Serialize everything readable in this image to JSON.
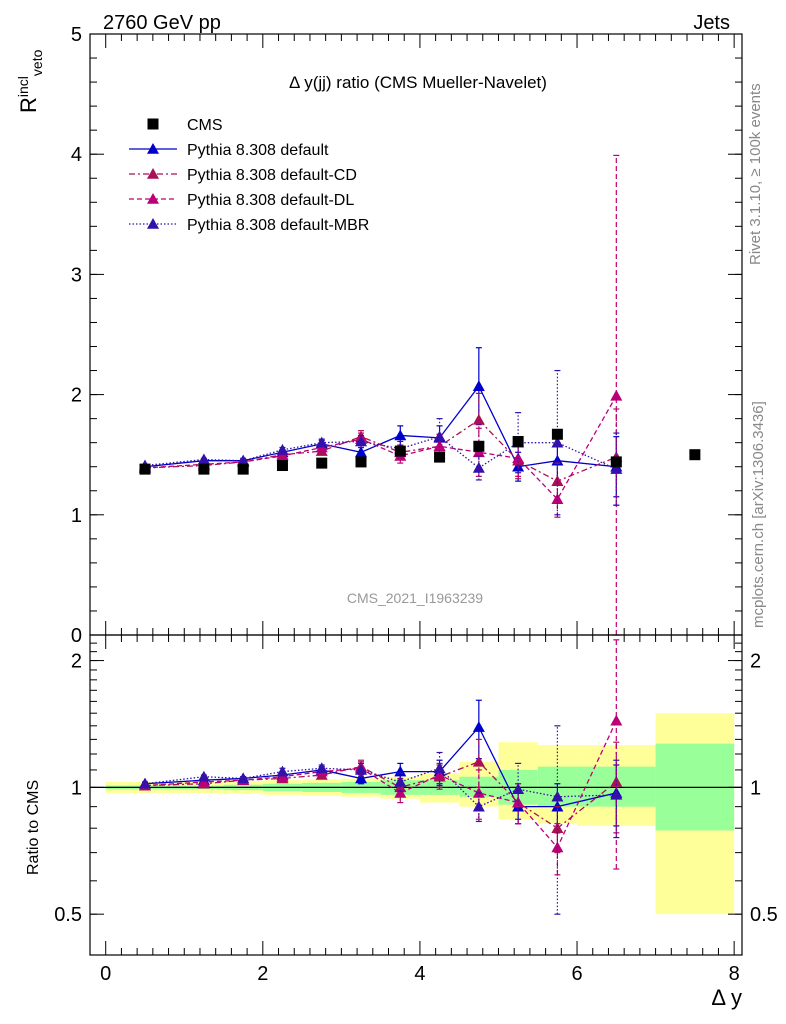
{
  "header": {
    "left": "2760 GeV pp",
    "right": "Jets"
  },
  "side_labels": {
    "rivet": "Rivet 3.1.10, ≥ 100k events",
    "mcplots": "mcplots.cern.ch [arXiv:1306.3436]"
  },
  "colors": {
    "cms": "#000000",
    "default": "#0000cc",
    "cd": "#aa1155",
    "dl": "#bb0077",
    "mbr": "#3311aa",
    "band_yellow": "#ffff99",
    "band_green": "#99ff99"
  },
  "chart_data": [
    {
      "type": "scatter",
      "title": "Δ y(jj) ratio (CMS Mueller-Navelet)",
      "ylabel_main": "R",
      "ylabel_sup": "incl",
      "ylabel_sub": "veto",
      "ylim": [
        0,
        5
      ],
      "xlim": [
        -0.2,
        8.1
      ],
      "yticks": [
        "0",
        "1",
        "2",
        "3",
        "4",
        "5"
      ],
      "watermark": "CMS_2021_I1963239",
      "legend_position": "top-left",
      "series": [
        {
          "name": "CMS",
          "marker": "square",
          "x": [
            0.5,
            1.25,
            1.75,
            2.25,
            2.75,
            3.25,
            3.75,
            4.25,
            4.75,
            5.25,
            5.75,
            6.5,
            7.5
          ],
          "y": [
            1.38,
            1.38,
            1.38,
            1.41,
            1.43,
            1.44,
            1.53,
            1.48,
            1.57,
            1.61,
            1.67,
            1.44,
            1.5
          ]
        },
        {
          "name": "Pythia 8.308 default",
          "line": "solid",
          "x": [
            0.5,
            1.25,
            1.75,
            2.25,
            2.75,
            3.25,
            3.75,
            4.25,
            4.75,
            5.25,
            5.75,
            6.5
          ],
          "y": [
            1.4,
            1.45,
            1.45,
            1.52,
            1.59,
            1.52,
            1.66,
            1.64,
            2.07,
            1.4,
            1.45,
            1.4
          ],
          "err": [
            0.01,
            0.01,
            0.01,
            0.02,
            0.03,
            0.04,
            0.08,
            0.1,
            0.32,
            0.12,
            0.2,
            0.25
          ]
        },
        {
          "name": "Pythia 8.308 default-CD",
          "line": "dashdot",
          "x": [
            0.5,
            1.25,
            1.75,
            2.25,
            2.75,
            3.25,
            3.75,
            4.25,
            4.75,
            5.25,
            5.75,
            6.5
          ],
          "y": [
            1.39,
            1.41,
            1.44,
            1.5,
            1.53,
            1.65,
            1.52,
            1.57,
            1.79,
            1.45,
            1.28,
            1.48
          ],
          "err": [
            0.01,
            0.01,
            0.02,
            0.02,
            0.03,
            0.05,
            0.06,
            0.1,
            0.22,
            0.15,
            0.15,
            0.4
          ]
        },
        {
          "name": "Pythia 8.308 default-DL",
          "line": "dashed",
          "x": [
            0.5,
            1.25,
            1.75,
            2.25,
            2.75,
            3.25,
            3.75,
            4.25,
            4.75,
            5.25,
            5.75,
            6.5
          ],
          "y": [
            1.39,
            1.42,
            1.44,
            1.49,
            1.56,
            1.63,
            1.49,
            1.57,
            1.52,
            1.47,
            1.13,
            1.99
          ],
          "err": [
            0.01,
            0.01,
            0.02,
            0.02,
            0.03,
            0.05,
            0.06,
            0.1,
            0.2,
            0.15,
            0.15,
            2.0
          ]
        },
        {
          "name": "Pythia 8.308 default-MBR",
          "line": "dotted",
          "x": [
            0.5,
            1.25,
            1.75,
            2.25,
            2.75,
            3.25,
            3.75,
            4.25,
            4.75,
            5.25,
            5.75,
            6.5
          ],
          "y": [
            1.41,
            1.46,
            1.45,
            1.54,
            1.6,
            1.61,
            1.55,
            1.65,
            1.39,
            1.6,
            1.6,
            1.38
          ],
          "err": [
            0.01,
            0.01,
            0.02,
            0.02,
            0.03,
            0.05,
            0.06,
            0.15,
            0.1,
            0.25,
            0.6,
            0.3
          ]
        }
      ]
    },
    {
      "type": "scatter",
      "ylabel": "Ratio to CMS",
      "xlabel": "Δ y",
      "ylim": [
        0.4,
        2.3
      ],
      "yscale": "log",
      "xlim": [
        -0.2,
        8.1
      ],
      "xticks": [
        "0",
        "2",
        "4",
        "6",
        "8"
      ],
      "yticks": [
        "0.5",
        "1",
        "2"
      ],
      "bands": {
        "bins": [
          [
            0,
            1.5
          ],
          [
            1.5,
            2
          ],
          [
            2,
            2.5
          ],
          [
            2.5,
            3
          ],
          [
            3,
            3.5
          ],
          [
            3.5,
            4
          ],
          [
            4,
            4.5
          ],
          [
            4.5,
            5
          ],
          [
            5,
            5.5
          ],
          [
            5.5,
            6
          ],
          [
            6,
            7
          ],
          [
            7,
            8
          ]
        ],
        "green": [
          [
            0.99,
            1.01
          ],
          [
            0.985,
            1.015
          ],
          [
            0.98,
            1.02
          ],
          [
            0.975,
            1.025
          ],
          [
            0.97,
            1.03
          ],
          [
            0.96,
            1.04
          ],
          [
            0.96,
            1.04
          ],
          [
            0.95,
            1.06
          ],
          [
            0.91,
            1.1
          ],
          [
            0.9,
            1.12
          ],
          [
            0.9,
            1.12
          ],
          [
            0.79,
            1.27
          ]
        ],
        "yellow": [
          [
            0.97,
            1.03
          ],
          [
            0.965,
            1.035
          ],
          [
            0.96,
            1.04
          ],
          [
            0.955,
            1.045
          ],
          [
            0.95,
            1.05
          ],
          [
            0.94,
            1.06
          ],
          [
            0.92,
            1.08
          ],
          [
            0.9,
            1.15
          ],
          [
            0.84,
            1.28
          ],
          [
            0.82,
            1.26
          ],
          [
            0.81,
            1.26
          ],
          [
            0.5,
            1.5
          ]
        ]
      },
      "series": [
        {
          "name": "Pythia 8.308 default",
          "y": [
            1.02,
            1.04,
            1.05,
            1.07,
            1.1,
            1.05,
            1.09,
            1.09,
            1.39,
            0.9,
            0.9,
            0.97
          ],
          "err": [
            0.01,
            0.01,
            0.01,
            0.01,
            0.02,
            0.03,
            0.05,
            0.07,
            0.22,
            0.08,
            0.12,
            0.16
          ]
        },
        {
          "name": "Pythia 8.308 default-CD",
          "y": [
            1.01,
            1.02,
            1.04,
            1.05,
            1.07,
            1.12,
            1.0,
            1.06,
            1.15,
            0.92,
            0.8,
            1.03
          ],
          "err": [
            0.01,
            0.01,
            0.01,
            0.02,
            0.02,
            0.04,
            0.05,
            0.07,
            0.15,
            0.1,
            0.1,
            0.25
          ]
        },
        {
          "name": "Pythia 8.308 default-DL",
          "y": [
            1.01,
            1.03,
            1.04,
            1.06,
            1.09,
            1.11,
            0.97,
            1.07,
            0.97,
            0.92,
            0.72,
            1.44
          ],
          "err": [
            0.01,
            0.01,
            0.01,
            0.02,
            0.02,
            0.04,
            0.05,
            0.07,
            0.13,
            0.1,
            0.1,
            0.8
          ]
        },
        {
          "name": "Pythia 8.308 default-MBR",
          "y": [
            1.02,
            1.06,
            1.05,
            1.09,
            1.11,
            1.1,
            1.03,
            1.11,
            0.9,
            0.99,
            0.95,
            0.96
          ],
          "err": [
            0.01,
            0.01,
            0.01,
            0.02,
            0.02,
            0.04,
            0.05,
            0.1,
            0.07,
            0.15,
            0.45,
            0.2
          ]
        }
      ]
    }
  ]
}
